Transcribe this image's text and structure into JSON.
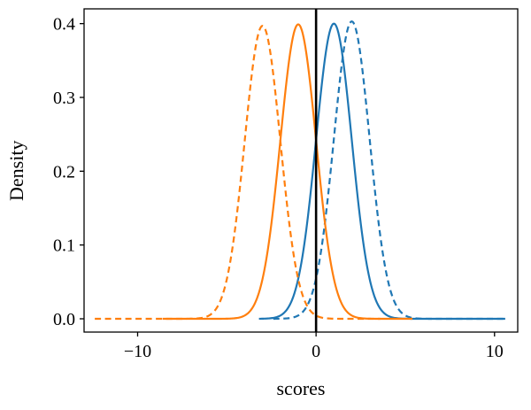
{
  "figure": {
    "background": "#ffffff"
  },
  "chart_data": {
    "type": "line",
    "title": "",
    "xlabel": "scores",
    "ylabel": "Density",
    "xlim": [
      -13.0,
      11.3
    ],
    "ylim": [
      -0.018,
      0.42
    ],
    "xticks": [
      -10,
      0,
      10
    ],
    "xtick_labels": [
      "−10",
      "0",
      "10"
    ],
    "yticks": [
      0.0,
      0.1,
      0.2,
      0.3,
      0.4
    ],
    "ytick_labels": [
      "0.0",
      "0.1",
      "0.2",
      "0.3",
      "0.4"
    ],
    "grid": false,
    "legend": null,
    "frame_color": "#000000",
    "vline": {
      "x": 0,
      "color": "#000000",
      "width": 2.6
    },
    "series": [
      {
        "name": "blue-solid",
        "distribution": "normal",
        "mean": 1.0,
        "std": 1.0,
        "peak": 0.4,
        "range": [
          -3.2,
          10.6
        ],
        "color": "#1f77b4",
        "dash": false
      },
      {
        "name": "blue-dashed",
        "distribution": "normal",
        "mean": 2.0,
        "std": 1.0,
        "peak": 0.403,
        "range": [
          -2.4,
          10.5
        ],
        "color": "#1f77b4",
        "dash": true
      },
      {
        "name": "orange-solid",
        "distribution": "normal",
        "mean": -1.0,
        "std": 1.0,
        "peak": 0.399,
        "range": [
          -8.6,
          5.4
        ],
        "color": "#ff7f0e",
        "dash": false
      },
      {
        "name": "orange-dashed",
        "distribution": "normal",
        "mean": -3.0,
        "std": 1.0,
        "peak": 0.397,
        "range": [
          -12.4,
          3.6
        ],
        "color": "#ff7f0e",
        "dash": true
      }
    ]
  }
}
